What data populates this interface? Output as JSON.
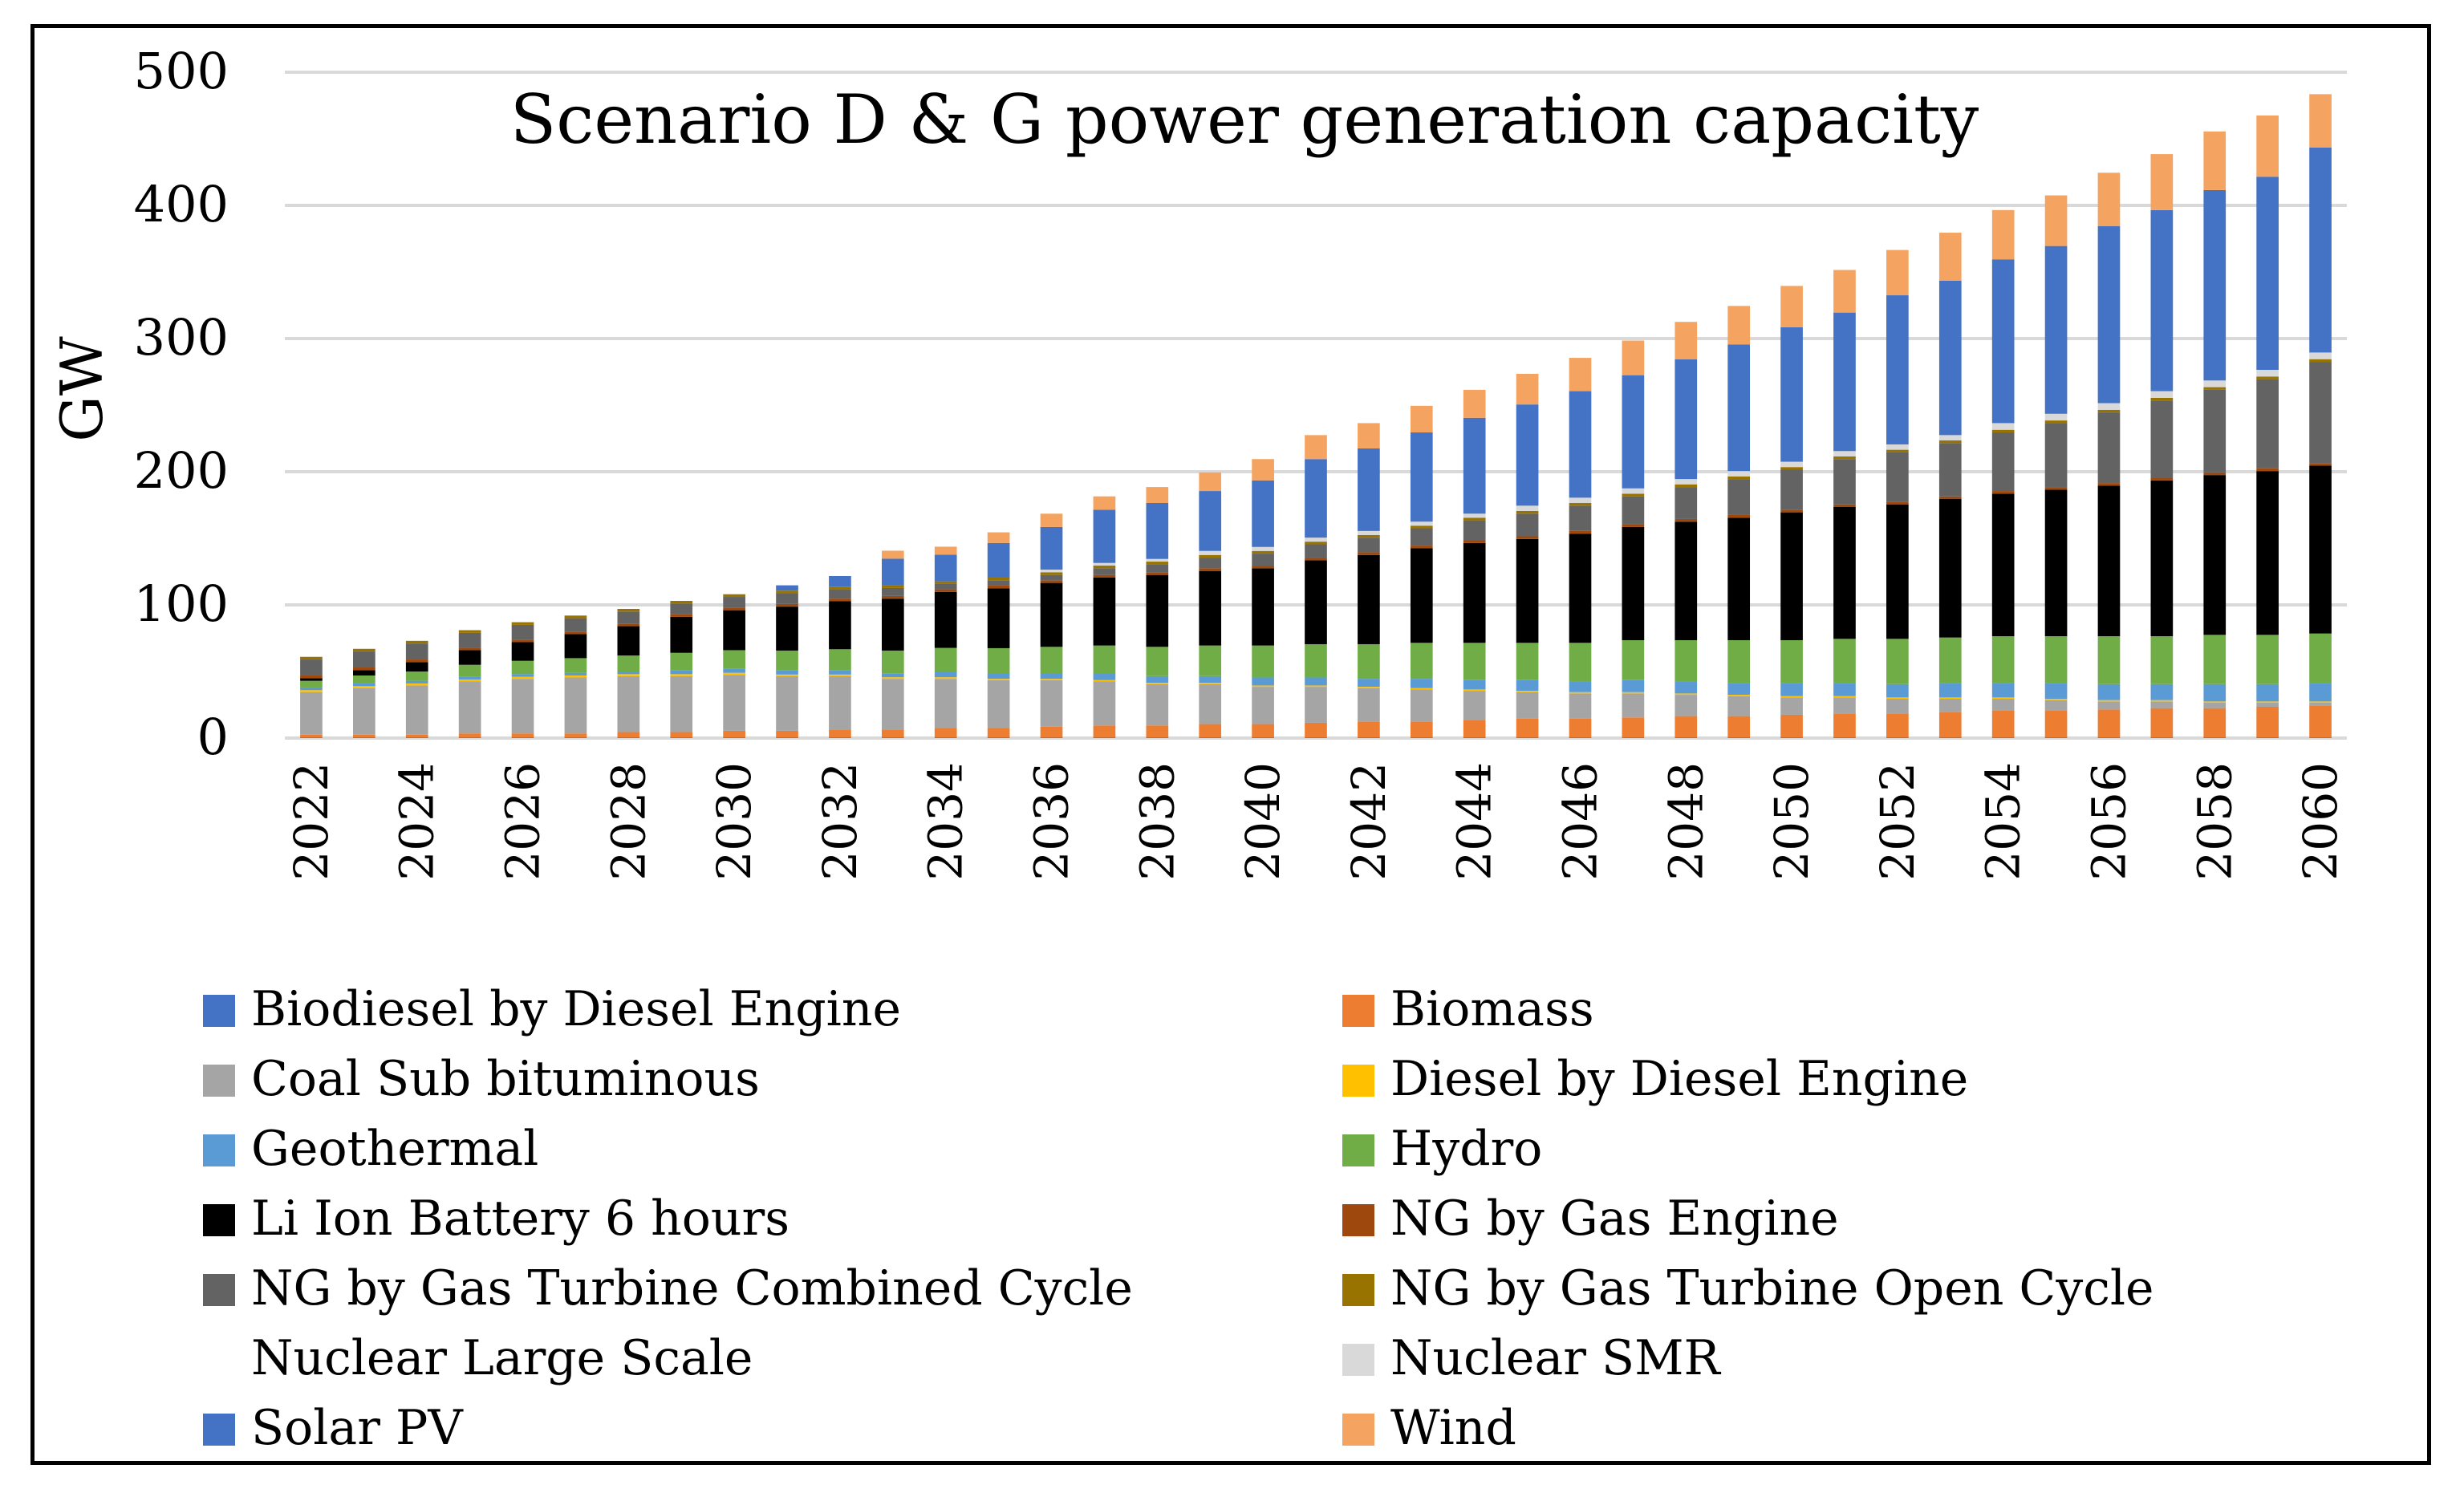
{
  "chart_data": {
    "type": "bar",
    "stacked": true,
    "title": "Scenario D & G power generation capacity",
    "xlabel": "",
    "ylabel": "GW",
    "ylim": [
      0,
      500
    ],
    "yticks": [
      0,
      100,
      200,
      300,
      400,
      500
    ],
    "grid": true,
    "legend_position": "bottom",
    "categories": [
      "2022",
      "2023",
      "2024",
      "2025",
      "2026",
      "2027",
      "2028",
      "2029",
      "2030",
      "2031",
      "2032",
      "2033",
      "2034",
      "2035",
      "2036",
      "2037",
      "2038",
      "2039",
      "2040",
      "2041",
      "2042",
      "2043",
      "2044",
      "2045",
      "2046",
      "2047",
      "2048",
      "2049",
      "2050",
      "2051",
      "2052",
      "2053",
      "2054",
      "2055",
      "2056",
      "2057",
      "2058",
      "2059",
      "2060"
    ],
    "x_tick_labels": [
      "2022",
      "2024",
      "2026",
      "2028",
      "2030",
      "2032",
      "2034",
      "2036",
      "2038",
      "2040",
      "2042",
      "2044",
      "2046",
      "2048",
      "2050",
      "2052",
      "2054",
      "2056",
      "2058",
      "2060"
    ],
    "series": [
      {
        "name": "Biodiesel by Diesel Engine",
        "color": "#4472C4",
        "values": [
          0.5,
          0.5,
          0.5,
          0.5,
          0.5,
          0.5,
          0.5,
          0.5,
          0.5,
          0.5,
          0.5,
          0.5,
          0.5,
          0.5,
          0.5,
          0.5,
          0.5,
          0.5,
          0.5,
          0.5,
          0.5,
          0.5,
          0.5,
          0.5,
          0.5,
          0.5,
          0.5,
          0.5,
          0.5,
          0.5,
          0.5,
          0.5,
          0.5,
          0.5,
          0.5,
          0.5,
          0.5,
          0.5,
          0.5
        ]
      },
      {
        "name": "Biomass",
        "color": "#ED7D31",
        "values": [
          2,
          2,
          2,
          3,
          3,
          3,
          4,
          4,
          5,
          5,
          6,
          6,
          7,
          7,
          8,
          9,
          9,
          10,
          10,
          11,
          12,
          12,
          13,
          14,
          14,
          15,
          16,
          16,
          17,
          18,
          18,
          19,
          20,
          20,
          21,
          22,
          22,
          23,
          24
        ]
      },
      {
        "name": "Coal Sub bituminous",
        "color": "#A5A5A5",
        "values": [
          32,
          35,
          37,
          39,
          41,
          42,
          42,
          42,
          42,
          41,
          40,
          38,
          37,
          36,
          35,
          33,
          31,
          30,
          28,
          27,
          25,
          24,
          22,
          20,
          19,
          18,
          16,
          15,
          13,
          12,
          11,
          10,
          9,
          8,
          6,
          5,
          4,
          3,
          2
        ]
      },
      {
        "name": "Diesel by Diesel Engine",
        "color": "#FFC000",
        "values": [
          1.5,
          1.5,
          1.5,
          1.5,
          1.5,
          1.5,
          1.5,
          1.5,
          1.5,
          1.2,
          1.2,
          1.2,
          1.2,
          1,
          1,
          1,
          1,
          1,
          1,
          1,
          1,
          1,
          1,
          1,
          1,
          1,
          1,
          1,
          1,
          1,
          1,
          1,
          1,
          1,
          1,
          1,
          1,
          1,
          1
        ]
      },
      {
        "name": "Geothermal",
        "color": "#5B9BD5",
        "values": [
          2,
          2,
          2,
          2,
          2,
          2,
          2,
          3,
          3,
          3,
          3,
          3,
          4,
          4,
          4,
          5,
          5,
          5,
          6,
          6,
          6,
          7,
          7,
          8,
          8,
          9,
          9,
          9,
          10,
          10,
          10,
          11,
          11,
          12,
          12,
          12,
          13,
          13,
          14
        ]
      },
      {
        "name": "Hydro",
        "color": "#70AD47",
        "values": [
          5,
          6,
          7,
          9,
          10,
          11,
          12,
          13,
          14,
          15,
          16,
          17,
          18,
          19,
          20,
          21,
          22,
          23,
          24,
          25,
          26,
          27,
          28,
          28,
          29,
          30,
          31,
          32,
          32,
          33,
          34,
          34,
          35,
          35,
          36,
          36,
          37,
          37,
          37
        ]
      },
      {
        "name": "Li Ion Battery 6 hours",
        "color": "#000000",
        "values": [
          2,
          4,
          7,
          11,
          14,
          18,
          22,
          27,
          30,
          33,
          36,
          39,
          42,
          45,
          48,
          51,
          54,
          56,
          58,
          63,
          67,
          71,
          75,
          78,
          82,
          85,
          89,
          92,
          96,
          99,
          101,
          104,
          107,
          110,
          113,
          117,
          120,
          123,
          126
        ]
      },
      {
        "name": "NG by Gas Engine",
        "color": "#9E480E",
        "values": [
          2,
          2,
          2,
          2,
          2,
          2,
          2,
          2,
          2,
          2,
          2,
          2,
          2,
          2,
          2,
          2,
          2,
          2,
          2,
          2,
          2,
          2,
          2,
          2,
          2,
          2,
          2,
          2,
          2,
          2,
          2,
          2,
          2,
          2,
          2,
          2,
          2,
          2,
          2
        ]
      },
      {
        "name": "NG by Gas Turbine Combined Cycle",
        "color": "#636363",
        "values": [
          12,
          12,
          12,
          11,
          11,
          10,
          9,
          8,
          8,
          8,
          7,
          6,
          4,
          4,
          4,
          5,
          6,
          8,
          9,
          10,
          11,
          13,
          15,
          17,
          19,
          21,
          24,
          27,
          30,
          34,
          37,
          40,
          44,
          48,
          53,
          58,
          62,
          67,
          76
        ]
      },
      {
        "name": "NG by Gas Turbine Open Cycle",
        "color": "#997300",
        "values": [
          2,
          2,
          2,
          2,
          2,
          2,
          2,
          2,
          2,
          2,
          2,
          2,
          2,
          2,
          2,
          2,
          2,
          2,
          2,
          2,
          2,
          2,
          2,
          2,
          2,
          2,
          2,
          2,
          2,
          2,
          2,
          2,
          2,
          2,
          2,
          2,
          2,
          2,
          2
        ]
      },
      {
        "name": "Nuclear Large Scale",
        "color": "#FFFFFF",
        "values": [
          0,
          0,
          0,
          0,
          0,
          0,
          0,
          0,
          0,
          0,
          0,
          0,
          0,
          0,
          0,
          0,
          0,
          0,
          0,
          0,
          0,
          0,
          0,
          0,
          0,
          0,
          0,
          0,
          0,
          0,
          0,
          0,
          0,
          0,
          0,
          0,
          0,
          0,
          0
        ]
      },
      {
        "name": "Nuclear SMR",
        "color": "#D9D9D9",
        "values": [
          0,
          0,
          0,
          0,
          0,
          0,
          0,
          0,
          0,
          0,
          0,
          0,
          0,
          0,
          2,
          2,
          2,
          3,
          3,
          3,
          3,
          3,
          3,
          4,
          4,
          4,
          4,
          4,
          4,
          4,
          4,
          4,
          5,
          5,
          5,
          5,
          5,
          5,
          5
        ]
      },
      {
        "name": "Solar PV",
        "color": "#4472C4",
        "values": [
          0,
          0,
          0,
          0,
          0,
          0,
          0,
          0,
          0,
          4,
          8,
          20,
          20,
          26,
          32,
          40,
          42,
          45,
          50,
          59,
          62,
          67,
          72,
          76,
          80,
          85,
          90,
          95,
          101,
          104,
          112,
          116,
          123,
          126,
          133,
          136,
          143,
          145,
          154
        ]
      },
      {
        "name": "Wind",
        "color": "#F4A460",
        "values": [
          0,
          0,
          0,
          0,
          0,
          0,
          0,
          0,
          0,
          0,
          0,
          6,
          6,
          8,
          10,
          10,
          12,
          14,
          16,
          18,
          19,
          20,
          21,
          23,
          25,
          26,
          28,
          29,
          31,
          32,
          34,
          36,
          37,
          38,
          40,
          42,
          44,
          46,
          40
        ]
      }
    ]
  }
}
